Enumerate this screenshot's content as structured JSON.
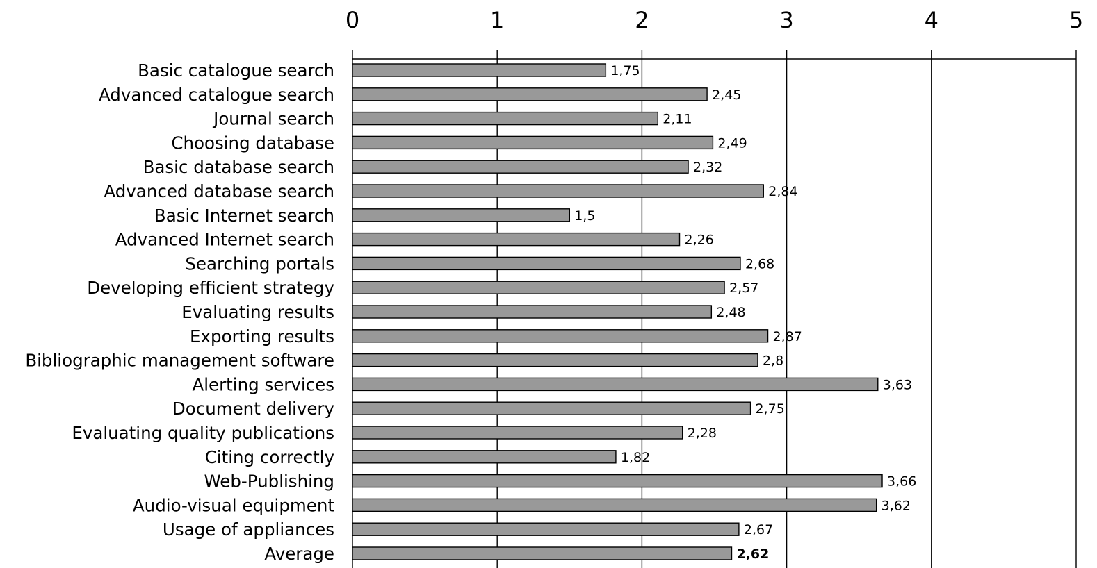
{
  "chart_data": {
    "type": "bar",
    "orientation": "horizontal",
    "title": "",
    "xlabel": "",
    "ylabel": "",
    "xlim": [
      0,
      5
    ],
    "x_ticks": [
      "0",
      "1",
      "2",
      "3",
      "4",
      "5"
    ],
    "x_axis_position": "top",
    "grid": "vertical",
    "legend": "none",
    "bar_color": "#999999",
    "bar_border_color": "#000000",
    "categories": [
      "Basic catalogue search",
      "Advanced catalogue search",
      "Journal search",
      "Choosing database",
      "Basic database search",
      "Advanced database search",
      "Basic Internet search",
      "Advanced Internet search",
      "Searching portals",
      "Developing efficient strategy",
      "Evaluating results",
      "Exporting results",
      "Bibliographic management software",
      "Alerting services",
      "Document delivery",
      "Evaluating quality publications",
      "Citing correctly",
      "Web-Publishing",
      "Audio-visual equipment",
      "Usage of appliances",
      "Average"
    ],
    "values": [
      1.75,
      2.45,
      2.11,
      2.49,
      2.32,
      2.84,
      1.5,
      2.26,
      2.68,
      2.57,
      2.48,
      2.87,
      2.8,
      3.63,
      2.75,
      2.28,
      1.82,
      3.66,
      3.62,
      2.67,
      2.62
    ],
    "data_labels": [
      "1,75",
      "2,45",
      "2,11",
      "2,49",
      "2,32",
      "2,84",
      "1,5",
      "2,26",
      "2,68",
      "2,57",
      "2,48",
      "2,87",
      "2,8",
      "3,63",
      "2,75",
      "2,28",
      "1,82",
      "3,66",
      "3,62",
      "2,67",
      "2,62"
    ],
    "bold_label_index": 20
  }
}
